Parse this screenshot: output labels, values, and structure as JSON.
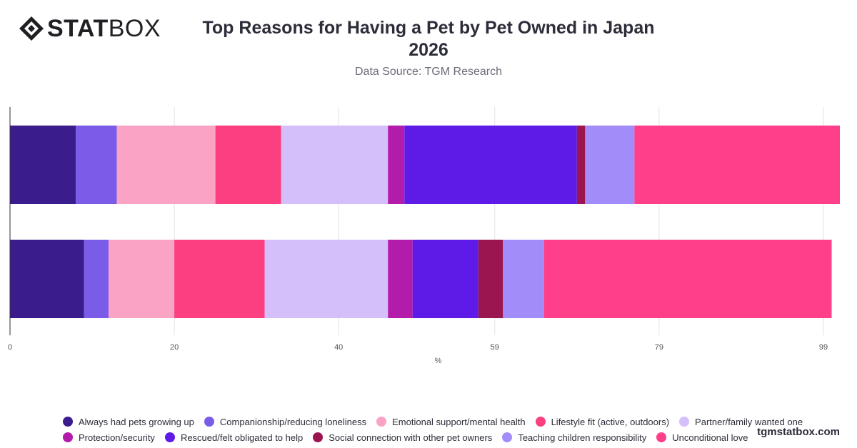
{
  "brand": {
    "logo_bold": "STAT",
    "logo_light": "BOX",
    "watermark": "tgmstatbox.com"
  },
  "header": {
    "title_line1": "Top Reasons for Having a Pet by Pet Owned in Japan",
    "title_line2": "2026",
    "subtitle": "Data Source: TGM Research"
  },
  "chart_data": {
    "type": "bar",
    "orientation": "horizontal",
    "stacked": true,
    "categories": [
      "",
      ""
    ],
    "xlabel": "%",
    "ylabel": "",
    "xlim": [
      0,
      101
    ],
    "xticks": [
      0,
      20,
      40,
      59,
      79,
      99
    ],
    "grid": true,
    "legend_position": "bottom",
    "series": [
      {
        "name": "Always had pets growing up",
        "color": "#3b1c8c",
        "values": [
          8,
          9
        ]
      },
      {
        "name": "Companionship/reducing loneliness",
        "color": "#7b5ce8",
        "values": [
          5,
          3
        ]
      },
      {
        "name": "Emotional support/mental health",
        "color": "#fba3c4",
        "values": [
          12,
          8
        ]
      },
      {
        "name": "Lifestyle fit (active, outdoors)",
        "color": "#fb3f80",
        "values": [
          8,
          11
        ]
      },
      {
        "name": "Partner/family wanted one",
        "color": "#d4bffb",
        "values": [
          13,
          15
        ]
      },
      {
        "name": "Protection/security",
        "color": "#b31bab",
        "values": [
          2,
          3
        ]
      },
      {
        "name": "Rescued/felt obligated to help",
        "color": "#5e1be8",
        "values": [
          21,
          8
        ]
      },
      {
        "name": "Social connection with other pet owners",
        "color": "#9b1550",
        "values": [
          1,
          3
        ]
      },
      {
        "name": "Teaching children responsibility",
        "color": "#a28cfa",
        "values": [
          6,
          5
        ]
      },
      {
        "name": "Unconditional love",
        "color": "#ff3f8a",
        "values": [
          25,
          35
        ]
      }
    ]
  }
}
